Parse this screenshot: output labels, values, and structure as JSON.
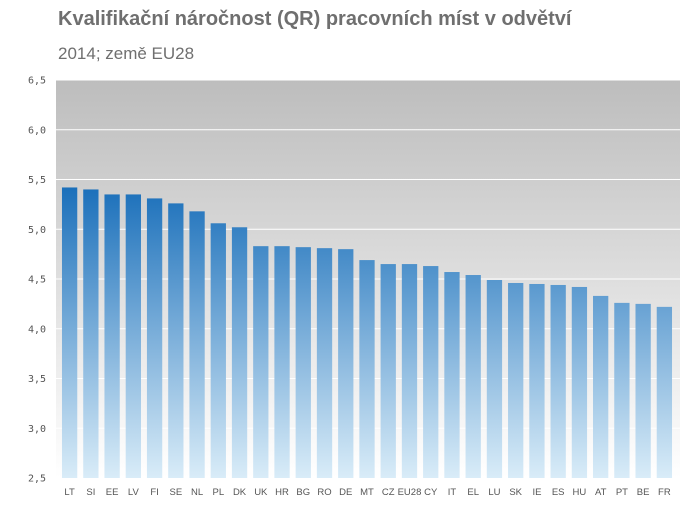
{
  "header": {
    "title": "Kvalifikační náročnost (QR)  pracovních míst v odvětví",
    "subtitle": "2014; země EU28"
  },
  "colors": {
    "bar_top": "#1a6fba",
    "bar_bottom": "#d9ecf8",
    "plot_top": "#bdbdbd",
    "plot_bottom": "#ffffff",
    "gridline": "#ffffff"
  },
  "chart_data": {
    "type": "bar",
    "title": "Kvalifikační náročnost (QR)  pracovních míst v odvětví",
    "subtitle": "2014; země EU28",
    "xlabel": "",
    "ylabel": "",
    "ylim": [
      2.5,
      6.5
    ],
    "yticks": [
      "2,5",
      "3,0",
      "3,5",
      "4,0",
      "4,5",
      "5,0",
      "5,5",
      "6,0",
      "6,5"
    ],
    "grid": true,
    "categories": [
      "LT",
      "SI",
      "EE",
      "LV",
      "FI",
      "SE",
      "NL",
      "PL",
      "DK",
      "UK",
      "HR",
      "BG",
      "RO",
      "DE",
      "MT",
      "CZ",
      "EU28",
      "CY",
      "IT",
      "EL",
      "LU",
      "SK",
      "IE",
      "ES",
      "HU",
      "AT",
      "PT",
      "BE",
      "FR"
    ],
    "values": [
      5.42,
      5.4,
      5.35,
      5.35,
      5.31,
      5.26,
      5.18,
      5.06,
      5.02,
      4.83,
      4.83,
      4.82,
      4.81,
      4.8,
      4.69,
      4.65,
      4.65,
      4.63,
      4.57,
      4.54,
      4.49,
      4.46,
      4.45,
      4.44,
      4.42,
      4.33,
      4.26,
      4.25,
      4.22
    ]
  }
}
